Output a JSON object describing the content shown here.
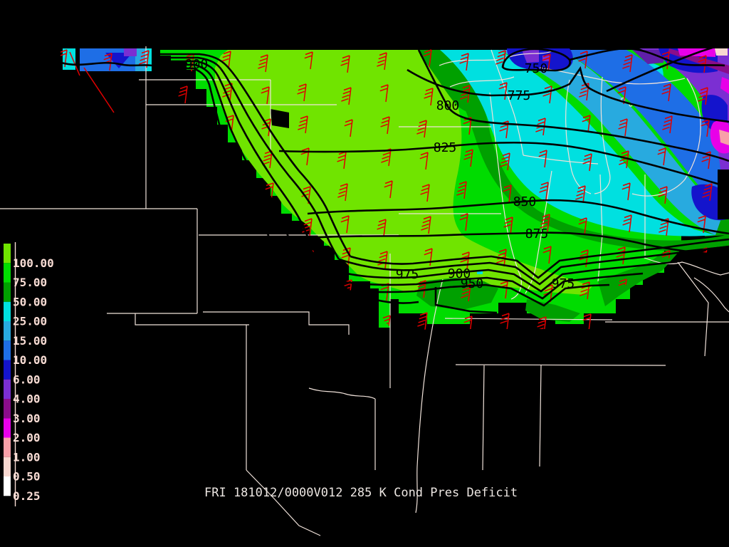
{
  "title": {
    "text": "FRI 181012/0000V012 285 K Cond Pres Deficit",
    "color": "#ECE6E2"
  },
  "legend": {
    "values": [
      "100.00",
      "75.00",
      "50.00",
      "25.00",
      "15.00",
      "10.00",
      "6.00",
      "4.00",
      "3.00",
      "2.00",
      "1.00",
      "0.50",
      "0.25"
    ],
    "colors": [
      "#70E400",
      "#00DC00",
      "#00A000",
      "#00E0E0",
      "#28AADF",
      "#1E6EE6",
      "#1414CC",
      "#7B2FD2",
      "#8A0D8A",
      "#E800E8",
      "#F8A0A8",
      "#F8D8D0",
      "#FFFFFF"
    ],
    "label_color": "#F8DCD4",
    "axis_color": "#F8DCD4"
  },
  "map": {
    "background": "#000000",
    "border_color": "#F0E2DA",
    "contour_color": "#000000",
    "contour_labels": [
      {
        "text": "900"
      },
      {
        "text": "8750"
      },
      {
        "text": "800"
      },
      {
        "text": "825"
      },
      {
        "text": "775"
      },
      {
        "text": "750"
      },
      {
        "text": "850"
      },
      {
        "text": "875"
      },
      {
        "text": "975"
      },
      {
        "text": "900"
      },
      {
        "text": "950"
      },
      {
        "text": "975"
      }
    ],
    "palette": {
      "lime": "#70E400",
      "green": "#00DC00",
      "dkgreen": "#00A000",
      "cyan": "#00E0E0",
      "sky": "#28AADF",
      "blue": "#1E6EE6",
      "navy": "#1414CC",
      "violet": "#7B2FD2",
      "violet_dark": "#5F1FA8",
      "dkmag": "#8A0D8A",
      "magenta": "#E800E8",
      "pink": "#F8A0A8",
      "ltpink": "#F8D8D0"
    },
    "wind_barbs": {
      "color": "#E00000"
    }
  }
}
